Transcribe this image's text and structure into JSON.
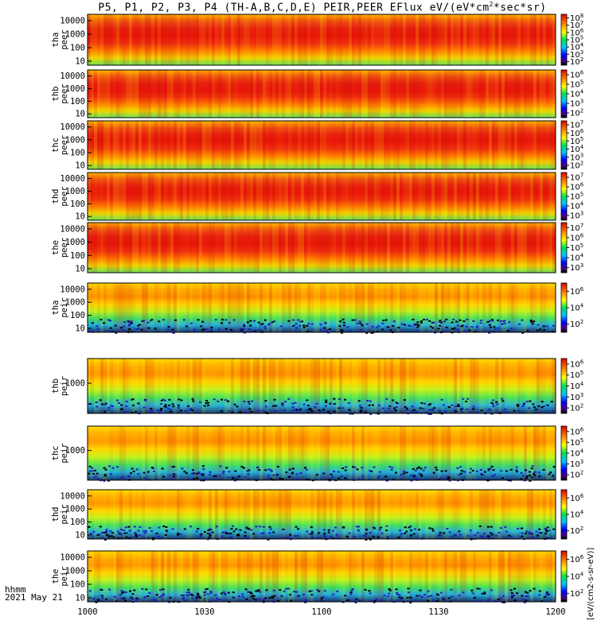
{
  "title": {
    "prefix": "P5, P1, P2, P3, P4 (TH-A,B,C,D,E) PEIR,PEER EFlux eV/(eV*cm",
    "sup": "2",
    "suffix": "*sec*sr)"
  },
  "colorbar_unit_label": "[eV/(cm2-s-sr-eV)]",
  "time_axis": {
    "label_top": "hhmm",
    "label_bottom": "2021 May 21",
    "ticks": [
      "1000",
      "1030",
      "1100",
      "1130",
      "1200"
    ]
  },
  "chart_data": {
    "type": "heatmap",
    "x_unit": "hhmm UT",
    "xlim": [
      "1000",
      "1200"
    ],
    "colormap": "rainbow (black-purple-blue-cyan-green-yellow-orange-red)",
    "panels": [
      {
        "probe": "tha",
        "product": "peer",
        "ylim": [
          5,
          30000
        ],
        "yscale": "log",
        "yticks": [
          "10",
          "100",
          "1000",
          "10000"
        ],
        "cbar_ticks": [
          "10",
          "10",
          "10",
          "10",
          "10",
          "10",
          "10"
        ],
        "cbar_exps": [
          "2",
          "3",
          "4",
          "5",
          "6",
          "7",
          "8"
        ]
      },
      {
        "probe": "thb",
        "product": "peer",
        "ylim": [
          5,
          30000
        ],
        "yscale": "log",
        "yticks": [
          "10",
          "100",
          "1000",
          "10000"
        ],
        "cbar_ticks": [
          "10",
          "10",
          "10",
          "10",
          "10"
        ],
        "cbar_exps": [
          "2",
          "3",
          "4",
          "5",
          "6"
        ]
      },
      {
        "probe": "thc",
        "product": "peer",
        "ylim": [
          5,
          30000
        ],
        "yscale": "log",
        "yticks": [
          "10",
          "100",
          "1000",
          "10000"
        ],
        "cbar_ticks": [
          "10",
          "10",
          "10",
          "10",
          "10",
          "10"
        ],
        "cbar_exps": [
          "2",
          "3",
          "4",
          "5",
          "6",
          "7"
        ]
      },
      {
        "probe": "thd",
        "product": "peer",
        "ylim": [
          5,
          30000
        ],
        "yscale": "log",
        "yticks": [
          "10",
          "100",
          "1000",
          "10000"
        ],
        "cbar_ticks": [
          "10",
          "10",
          "10",
          "10",
          "10"
        ],
        "cbar_exps": [
          "3",
          "4",
          "5",
          "6",
          "7"
        ]
      },
      {
        "probe": "the",
        "product": "peer",
        "ylim": [
          5,
          30000
        ],
        "yscale": "log",
        "yticks": [
          "10",
          "100",
          "1000",
          "10000"
        ],
        "cbar_ticks": [
          "10",
          "10",
          "10",
          "10",
          "10"
        ],
        "cbar_exps": [
          "3",
          "4",
          "5",
          "6",
          "7"
        ]
      },
      {
        "probe": "tha",
        "product": "peir",
        "ylim": [
          5,
          30000
        ],
        "yscale": "log",
        "yticks": [
          "10",
          "100",
          "1000",
          "10000"
        ],
        "cbar_ticks": [
          "10",
          "10",
          "10"
        ],
        "cbar_exps": [
          "2",
          "4",
          "6"
        ]
      },
      {
        "probe": "thb",
        "product": "peir",
        "ylim": [
          5,
          30000
        ],
        "yscale": "log",
        "yticks": [
          "1000"
        ],
        "cbar_ticks": [
          "10",
          "10",
          "10",
          "10",
          "10"
        ],
        "cbar_exps": [
          "2",
          "3",
          "4",
          "5",
          "6"
        ]
      },
      {
        "probe": "thc",
        "product": "peir",
        "ylim": [
          5,
          30000
        ],
        "yscale": "log",
        "yticks": [
          "1000"
        ],
        "cbar_ticks": [
          "10",
          "10",
          "10",
          "10",
          "10"
        ],
        "cbar_exps": [
          "2",
          "3",
          "4",
          "5",
          "6"
        ]
      },
      {
        "probe": "thd",
        "product": "peir",
        "ylim": [
          5,
          30000
        ],
        "yscale": "log",
        "yticks": [
          "10",
          "100",
          "1000",
          "10000"
        ],
        "cbar_ticks": [
          "10",
          "10",
          "10"
        ],
        "cbar_exps": [
          "2",
          "4",
          "6"
        ]
      },
      {
        "probe": "the",
        "product": "peir",
        "ylim": [
          5,
          30000
        ],
        "yscale": "log",
        "yticks": [
          "10",
          "100",
          "1000",
          "10000"
        ],
        "cbar_ticks": [
          "10",
          "10",
          "10"
        ],
        "cbar_exps": [
          "2",
          "4",
          "6"
        ]
      }
    ]
  }
}
